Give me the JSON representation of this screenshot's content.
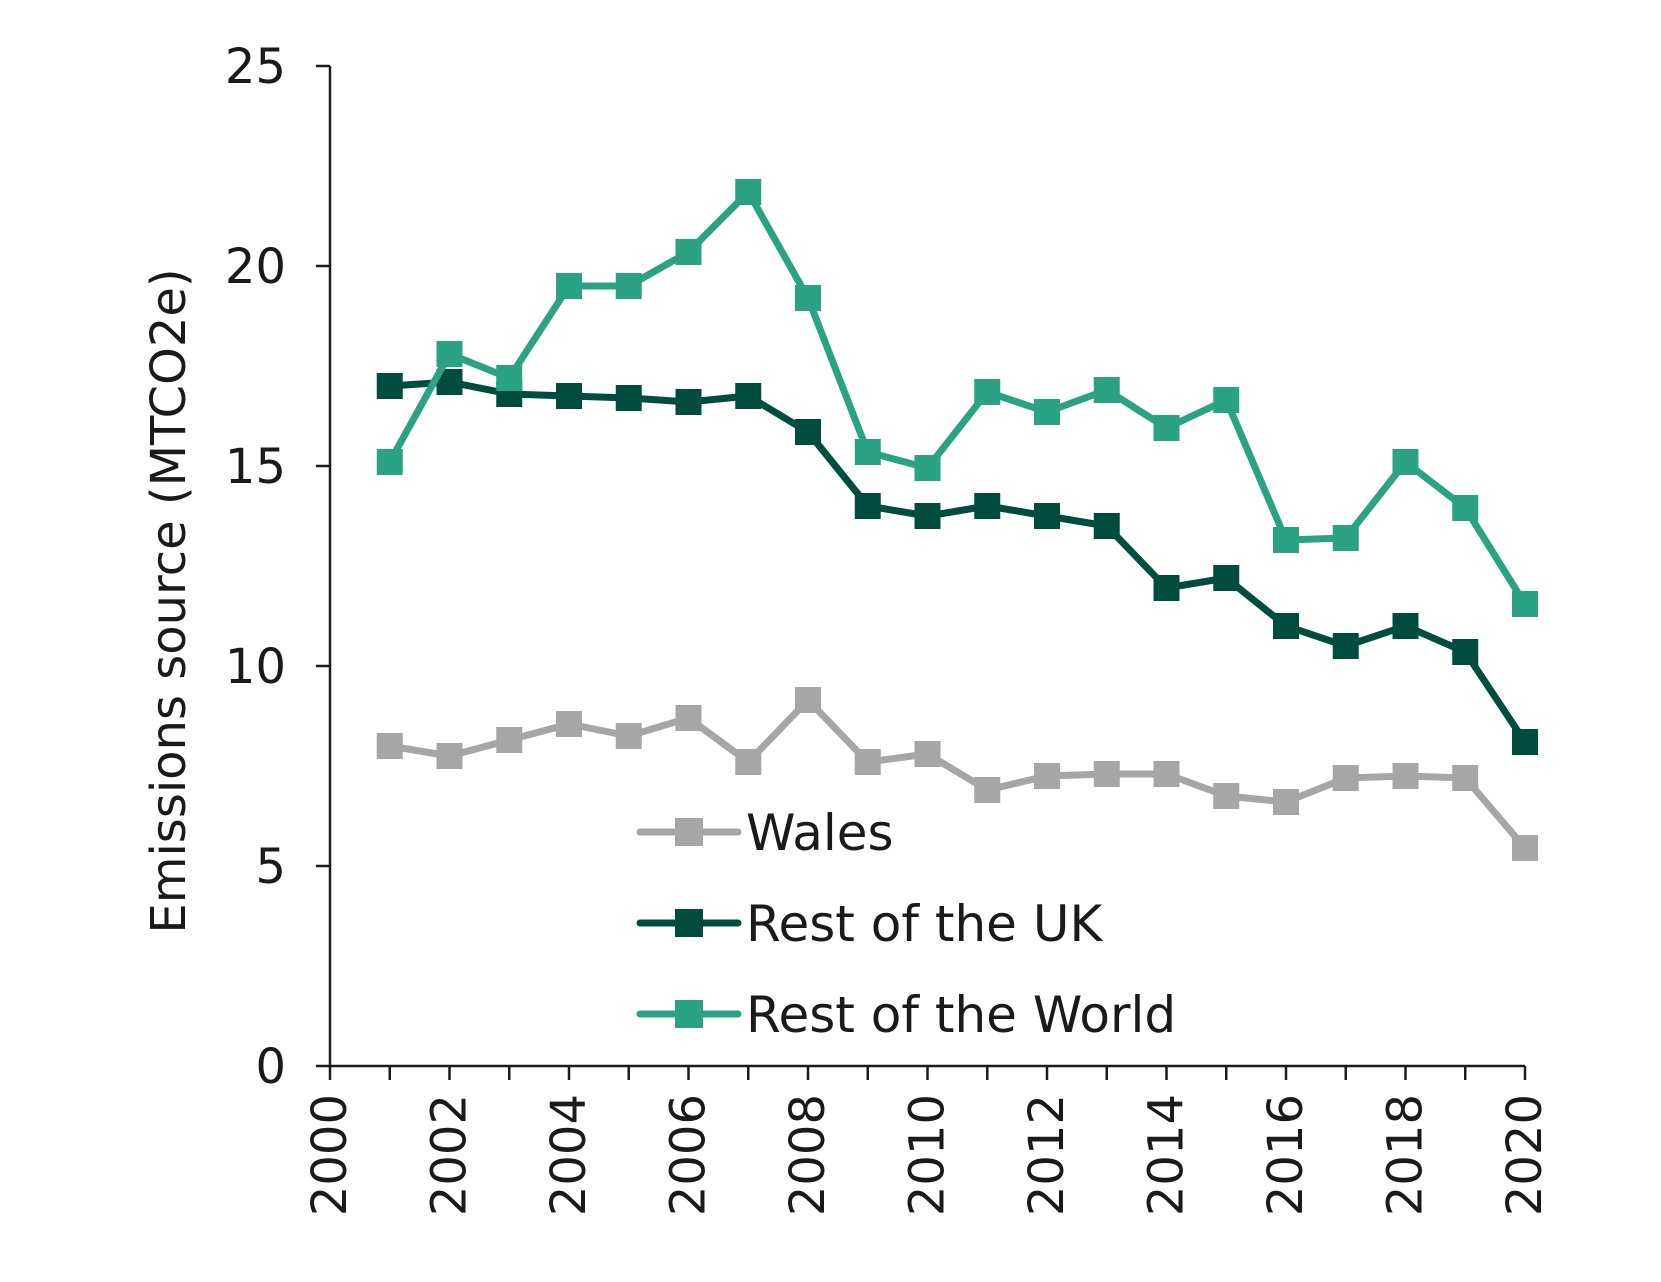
{
  "chart_data": {
    "type": "line",
    "title": "",
    "xlabel": "",
    "ylabel": "Emissions source (MTCO2e)",
    "x": [
      2001,
      2002,
      2003,
      2004,
      2005,
      2006,
      2007,
      2008,
      2009,
      2010,
      2011,
      2012,
      2013,
      2014,
      2015,
      2016,
      2017,
      2018,
      2019,
      2020
    ],
    "xlim": [
      2000,
      2020
    ],
    "ylim": [
      0,
      25
    ],
    "yticks": [
      "0",
      "5",
      "10",
      "15",
      "20",
      "25"
    ],
    "xticks": [
      "2000",
      "2002",
      "2004",
      "2006",
      "2008",
      "2010",
      "2012",
      "2014",
      "2016",
      "2018",
      "2020"
    ],
    "grid": false,
    "legend_position": "bottom-center",
    "series": [
      {
        "name": "Wales",
        "color": "#a6a6a6",
        "values": [
          8.0,
          7.75,
          8.15,
          8.55,
          8.25,
          8.7,
          7.6,
          9.15,
          7.6,
          7.8,
          6.9,
          7.25,
          7.3,
          7.3,
          6.75,
          6.6,
          7.2,
          7.25,
          7.2,
          5.45
        ]
      },
      {
        "name": "Rest of the UK",
        "color": "#004d40",
        "values": [
          17.0,
          17.1,
          16.8,
          16.75,
          16.7,
          16.6,
          16.75,
          15.85,
          14.0,
          13.75,
          14.0,
          13.75,
          13.5,
          11.95,
          12.2,
          11.0,
          10.5,
          11.0,
          10.35,
          8.1
        ]
      },
      {
        "name": "Rest of the World",
        "color": "#2aa283",
        "values": [
          15.1,
          17.8,
          17.2,
          19.5,
          19.5,
          20.35,
          21.85,
          19.2,
          15.35,
          14.95,
          16.85,
          16.35,
          16.9,
          15.95,
          16.65,
          13.15,
          13.2,
          15.1,
          13.95,
          11.55
        ]
      }
    ]
  }
}
